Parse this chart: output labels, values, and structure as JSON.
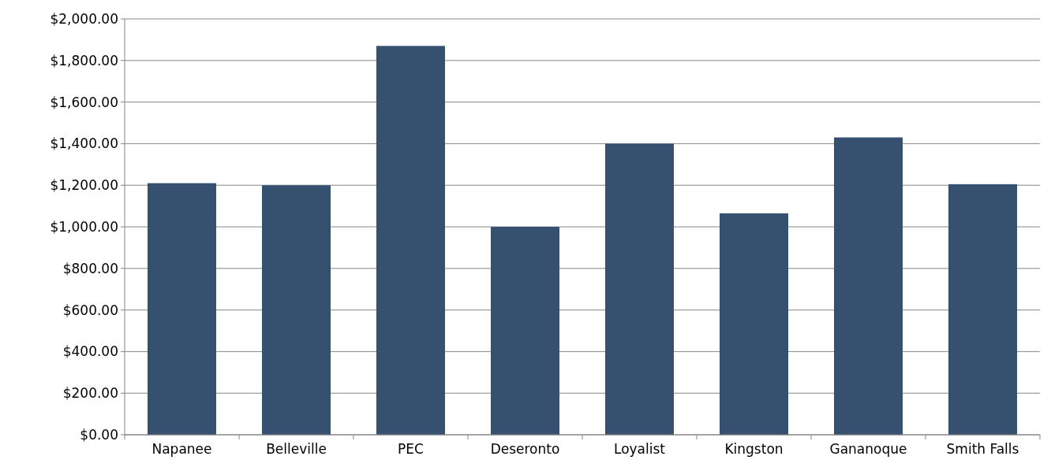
{
  "chart_data": {
    "type": "bar",
    "categories": [
      "Napanee",
      "Belleville",
      "PEC",
      "Deseronto",
      "Loyalist",
      "Kingston",
      "Gananoque",
      "Smith Falls"
    ],
    "values": [
      1210,
      1200,
      1870,
      1000,
      1400,
      1065,
      1430,
      1205
    ],
    "color": "#36506f",
    "ylim": [
      0,
      2000
    ],
    "yticks": [
      {
        "value": 0,
        "label": "$0.00"
      },
      {
        "value": 200,
        "label": "$200.00"
      },
      {
        "value": 400,
        "label": "$400.00"
      },
      {
        "value": 600,
        "label": "$600.00"
      },
      {
        "value": 800,
        "label": "$800.00"
      },
      {
        "value": 1000,
        "label": "$1,000.00"
      },
      {
        "value": 1200,
        "label": "$1,200.00"
      },
      {
        "value": 1400,
        "label": "$1,400.00"
      },
      {
        "value": 1600,
        "label": "$1,600.00"
      },
      {
        "value": 1800,
        "label": "$1,800.00"
      },
      {
        "value": 2000,
        "label": "$2,000.00"
      }
    ],
    "grid": "y"
  }
}
